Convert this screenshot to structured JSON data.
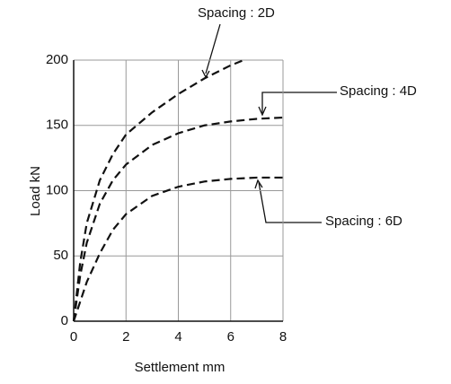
{
  "chart_data": {
    "type": "line",
    "xlabel": "Settlement mm",
    "ylabel": "Load kN",
    "xlim": [
      0,
      8
    ],
    "xticks": [
      0,
      2,
      4,
      6,
      8
    ],
    "ylim": [
      0,
      200
    ],
    "yticks": [
      0,
      50,
      100,
      150,
      200
    ],
    "grid": true,
    "line_style": "dashed",
    "series": [
      {
        "name": "Spacing : 2D",
        "color": "#111111",
        "x": [
          0,
          0.25,
          0.5,
          1,
          1.5,
          2,
          3,
          4,
          5,
          6,
          6.5
        ],
        "values": [
          0,
          45,
          75,
          108,
          128,
          143,
          160,
          174,
          186,
          196,
          200
        ]
      },
      {
        "name": "Spacing : 4D",
        "color": "#111111",
        "x": [
          0,
          0.25,
          0.5,
          1,
          1.5,
          2,
          3,
          4,
          5,
          6,
          7,
          8
        ],
        "values": [
          0,
          35,
          60,
          90,
          108,
          120,
          135,
          144,
          150,
          153,
          155,
          156
        ]
      },
      {
        "name": "Spacing : 6D",
        "color": "#111111",
        "x": [
          0,
          0.5,
          1,
          1.5,
          2,
          3,
          4,
          5,
          6,
          7,
          8
        ],
        "values": [
          0,
          30,
          52,
          70,
          82,
          96,
          103,
          107,
          109,
          110,
          110
        ]
      }
    ]
  }
}
